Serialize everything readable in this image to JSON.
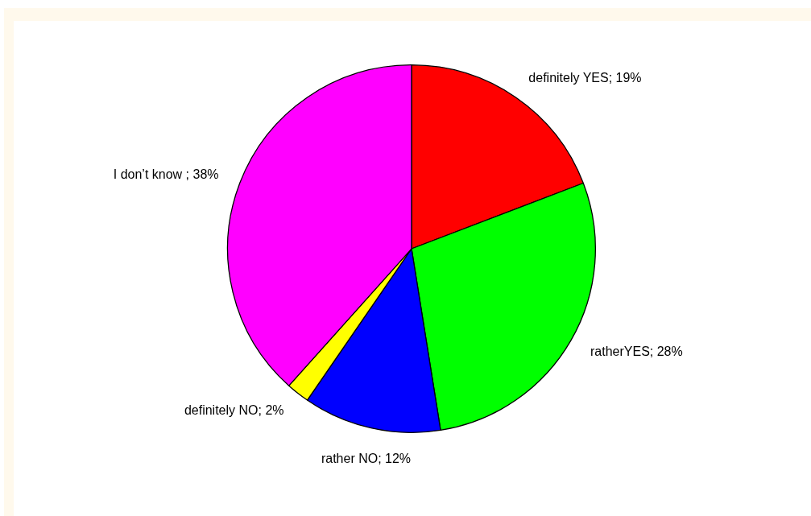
{
  "chart_data": {
    "type": "pie",
    "categories": [
      "definitely YES",
      "ratherYES",
      "rather NO",
      "definitely NO",
      "I don’t know "
    ],
    "values": [
      19,
      28,
      12,
      2,
      38
    ],
    "value_labels": [
      "19%",
      "28%",
      "12%",
      "2%",
      "38%"
    ],
    "colors": [
      "#ff0000",
      "#00ff00",
      "#0000ff",
      "#ffff00",
      "#ff00ff"
    ]
  }
}
